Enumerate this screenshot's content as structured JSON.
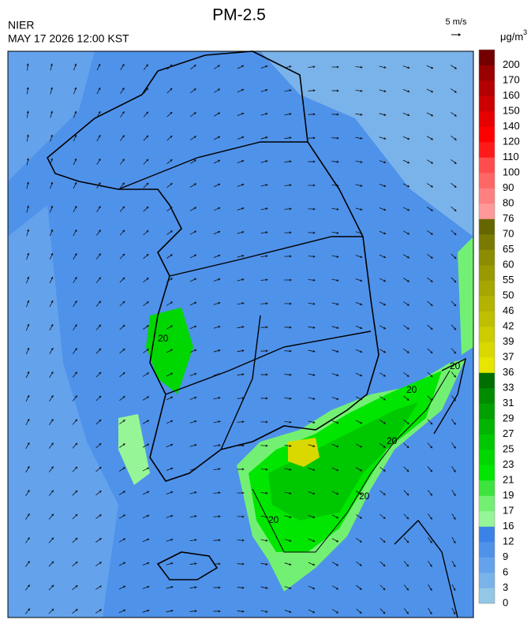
{
  "header": {
    "title": "PM-2.5",
    "source": "NIER",
    "datetime": "MAY 17 2026 12:00 KST",
    "wind_scale": "5 m/s"
  },
  "legend": {
    "unit": "μg/m",
    "unit_exponent": "3",
    "labels": [
      0,
      3,
      6,
      9,
      12,
      16,
      17,
      19,
      21,
      23,
      25,
      27,
      29,
      31,
      33,
      36,
      37,
      39,
      42,
      46,
      50,
      55,
      60,
      65,
      70,
      76,
      80,
      90,
      100,
      110,
      120,
      140,
      150,
      160,
      170,
      200
    ],
    "colors": [
      "#93c7e6",
      "#7ab3ea",
      "#64a2ec",
      "#4f92ea",
      "#3a82e6",
      "#96f596",
      "#73f073",
      "#3ee43e",
      "#00e600",
      "#00d700",
      "#00c800",
      "#00b400",
      "#00a000",
      "#008c00",
      "#006e00",
      "#e6e600",
      "#d9d900",
      "#cccc00",
      "#bfbf00",
      "#b3b300",
      "#a6a600",
      "#999900",
      "#8c8c00",
      "#7a7a00",
      "#666600",
      "#ff9999",
      "#ff8080",
      "#ff6666",
      "#ff4d4d",
      "#ff1a1a",
      "#ff0000",
      "#e60000",
      "#cc0000",
      "#b30000",
      "#990000",
      "#730000"
    ]
  },
  "map": {
    "contour_label": "20"
  }
}
